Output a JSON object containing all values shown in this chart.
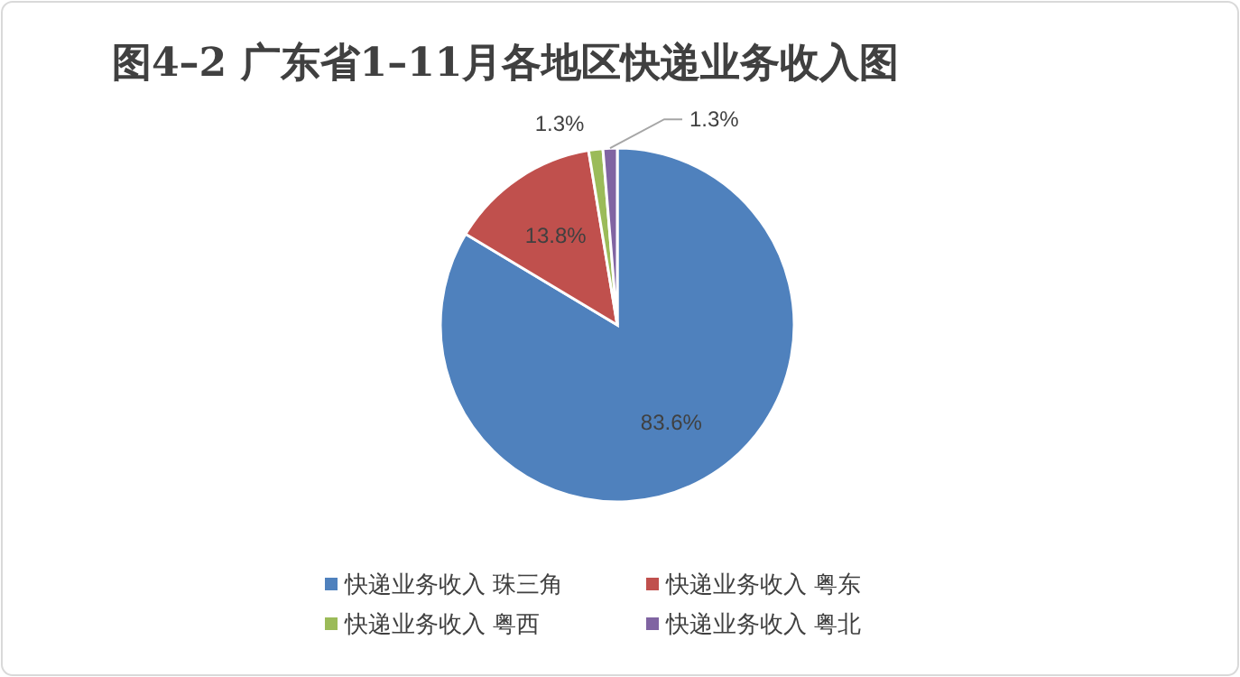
{
  "chart_data": {
    "type": "pie",
    "title": "图4–2 广东省1–11月各地区快递业务收入图",
    "categories": [
      "快递业务收入 珠三角",
      "快递业务收入 粤东",
      "快递业务收入 粤西",
      "快递业务收入 粤北"
    ],
    "values": [
      83.6,
      13.8,
      1.3,
      1.3
    ],
    "colors": [
      "#4f81bd",
      "#c0504d",
      "#9bbb59",
      "#8064a2"
    ],
    "value_labels": [
      "83.6%",
      "13.8%",
      "1.3%",
      "1.3%"
    ],
    "legend": "bottom"
  }
}
